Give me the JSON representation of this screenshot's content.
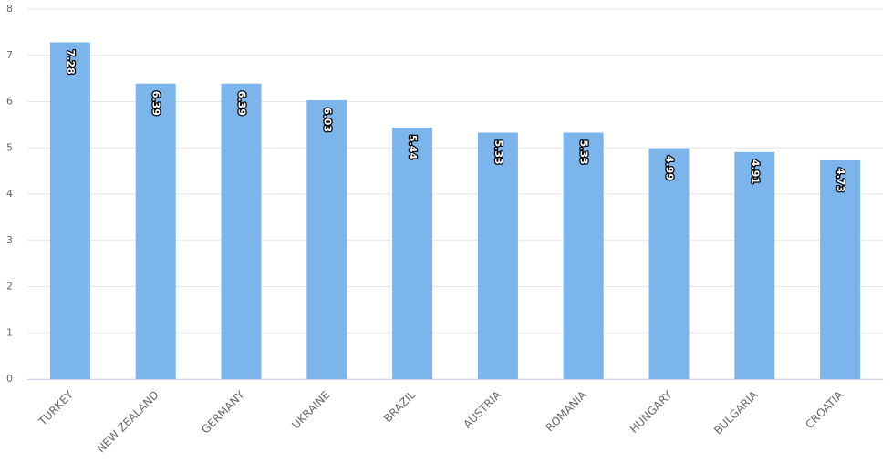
{
  "chart_data": {
    "type": "bar",
    "categories": [
      "TURKEY",
      "NEW ZEALAND",
      "GERMANY",
      "UKRAINE",
      "BRAZIL",
      "AUSTRIA",
      "ROMANIA",
      "HUNGARY",
      "BULGARIA",
      "CROATIA"
    ],
    "values": [
      7.28,
      6.39,
      6.39,
      6.03,
      5.44,
      5.33,
      5.33,
      4.99,
      4.91,
      4.73
    ],
    "color": "#7cb5ec",
    "ylim": [
      0,
      8
    ],
    "yticks": [
      0,
      1,
      2,
      3,
      4,
      5,
      6,
      7,
      8
    ],
    "grid": true
  }
}
